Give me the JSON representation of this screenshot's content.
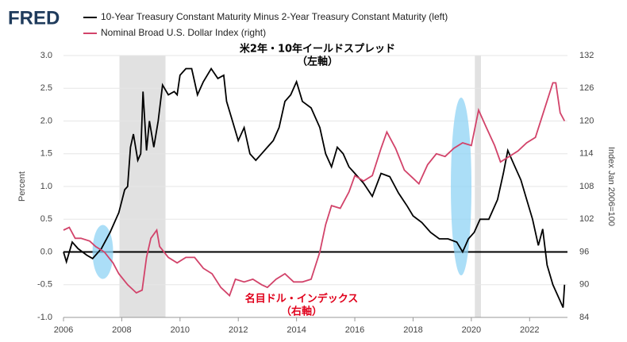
{
  "logo": "FRED",
  "chart_data": {
    "type": "line",
    "annotations": [
      {
        "lines": [
          "米2年・10年イールドスプレッド",
          "（左軸）"
        ],
        "color": "#000000"
      },
      {
        "lines": [
          "名目ドル・インデックス",
          "（右軸）"
        ],
        "color": "#e0001b"
      }
    ],
    "ylabel": "Percent",
    "y2label": "Index Jan 2006=100",
    "xlim": [
      2006,
      2023.3
    ],
    "xticks": [
      2006,
      2008,
      2010,
      2012,
      2014,
      2016,
      2018,
      2020,
      2022
    ],
    "ylim": [
      -1.0,
      3.0
    ],
    "yticks": [
      {
        "value": -1.0,
        "label": "-1.0"
      },
      {
        "value": -0.5,
        "label": "-0.5"
      },
      {
        "value": 0.0,
        "label": "0.0"
      },
      {
        "value": 0.5,
        "label": "0.5"
      },
      {
        "value": 1.0,
        "label": "1.0"
      },
      {
        "value": 1.5,
        "label": "1.5"
      },
      {
        "value": 2.0,
        "label": "2.0"
      },
      {
        "value": 2.5,
        "label": "2.5"
      },
      {
        "value": 3.0,
        "label": "3.0"
      }
    ],
    "y2lim": [
      84,
      132
    ],
    "y2ticks": [
      84,
      90,
      96,
      102,
      108,
      114,
      120,
      126,
      132
    ],
    "grid": true,
    "recessions": [
      [
        2007.92,
        2009.5
      ],
      [
        2020.12,
        2020.33
      ]
    ],
    "series": [
      {
        "name": "10-Year Treasury Constant Maturity Minus 2-Year Treasury Constant Maturity (left)",
        "color": "#000000",
        "x": [
          2006.0,
          2006.1,
          2006.3,
          2006.5,
          2006.8,
          2007.0,
          2007.3,
          2007.6,
          2007.9,
          2008.1,
          2008.2,
          2008.3,
          2008.4,
          2008.55,
          2008.65,
          2008.73,
          2008.85,
          2008.95,
          2009.1,
          2009.25,
          2009.4,
          2009.6,
          2009.8,
          2009.9,
          2010.0,
          2010.2,
          2010.4,
          2010.5,
          2010.6,
          2010.8,
          2011.07,
          2011.3,
          2011.5,
          2011.6,
          2011.8,
          2012.0,
          2012.2,
          2012.4,
          2012.6,
          2012.8,
          2013.0,
          2013.2,
          2013.4,
          2013.6,
          2013.8,
          2014.0,
          2014.2,
          2014.5,
          2014.8,
          2015.0,
          2015.2,
          2015.4,
          2015.6,
          2015.8,
          2016.0,
          2016.3,
          2016.6,
          2016.9,
          2017.2,
          2017.5,
          2017.8,
          2018.0,
          2018.3,
          2018.6,
          2018.9,
          2019.2,
          2019.5,
          2019.7,
          2019.9,
          2020.1,
          2020.3,
          2020.6,
          2020.9,
          2021.1,
          2021.25,
          2021.5,
          2021.7,
          2021.9,
          2022.1,
          2022.3,
          2022.45,
          2022.6,
          2022.8,
          2023.0,
          2023.15,
          2023.2
        ],
        "values": [
          0.0,
          -0.15,
          0.15,
          0.05,
          -0.05,
          -0.1,
          0.05,
          0.3,
          0.6,
          0.95,
          1.0,
          1.6,
          1.8,
          1.4,
          1.5,
          2.45,
          1.55,
          2.0,
          1.6,
          2.0,
          2.55,
          2.4,
          2.45,
          2.4,
          2.7,
          2.8,
          2.8,
          2.6,
          2.4,
          2.6,
          2.8,
          2.65,
          2.7,
          2.3,
          2.0,
          1.7,
          1.9,
          1.5,
          1.4,
          1.5,
          1.6,
          1.7,
          1.9,
          2.3,
          2.4,
          2.6,
          2.3,
          2.2,
          1.9,
          1.5,
          1.3,
          1.6,
          1.5,
          1.3,
          1.2,
          1.05,
          0.85,
          1.2,
          1.15,
          0.9,
          0.7,
          0.55,
          0.45,
          0.3,
          0.2,
          0.2,
          0.15,
          0.0,
          0.2,
          0.3,
          0.5,
          0.5,
          0.8,
          1.2,
          1.55,
          1.3,
          1.1,
          0.8,
          0.5,
          0.1,
          0.35,
          -0.2,
          -0.5,
          -0.7,
          -0.85,
          -0.5
        ]
      },
      {
        "name": "Nominal Broad U.S. Dollar Index (right)",
        "color": "#d2436a",
        "axis": "y2",
        "x": [
          2006.0,
          2006.2,
          2006.4,
          2006.6,
          2006.9,
          2007.1,
          2007.4,
          2007.7,
          2007.9,
          2008.2,
          2008.5,
          2008.7,
          2008.85,
          2009.0,
          2009.2,
          2009.3,
          2009.6,
          2009.9,
          2010.2,
          2010.5,
          2010.8,
          2011.1,
          2011.4,
          2011.7,
          2011.9,
          2012.2,
          2012.5,
          2012.8,
          2013.0,
          2013.3,
          2013.6,
          2013.9,
          2014.2,
          2014.5,
          2014.8,
          2015.0,
          2015.2,
          2015.5,
          2015.8,
          2016.0,
          2016.3,
          2016.6,
          2016.9,
          2017.1,
          2017.4,
          2017.7,
          2018.0,
          2018.2,
          2018.5,
          2018.8,
          2019.1,
          2019.4,
          2019.7,
          2020.0,
          2020.25,
          2020.5,
          2020.8,
          2021.0,
          2021.3,
          2021.6,
          2021.9,
          2022.2,
          2022.5,
          2022.8,
          2022.9,
          2023.05,
          2023.2
        ],
        "values": [
          100,
          100.5,
          98.5,
          98.5,
          98,
          97,
          96,
          94,
          92,
          90,
          88.5,
          89,
          95,
          98.5,
          100,
          97,
          95,
          94,
          95,
          95,
          93,
          92,
          89.5,
          88,
          91,
          90.5,
          91,
          90,
          89.5,
          91,
          92,
          90.5,
          90.5,
          91,
          96,
          101,
          104.5,
          104,
          107,
          110,
          109,
          110,
          115,
          118,
          115,
          111,
          109.5,
          108.5,
          112,
          114,
          113.5,
          115,
          116,
          115.5,
          122,
          119,
          115.5,
          112.5,
          113.5,
          114.5,
          116,
          117,
          122,
          127,
          127,
          121.5,
          120
        ]
      }
    ]
  }
}
